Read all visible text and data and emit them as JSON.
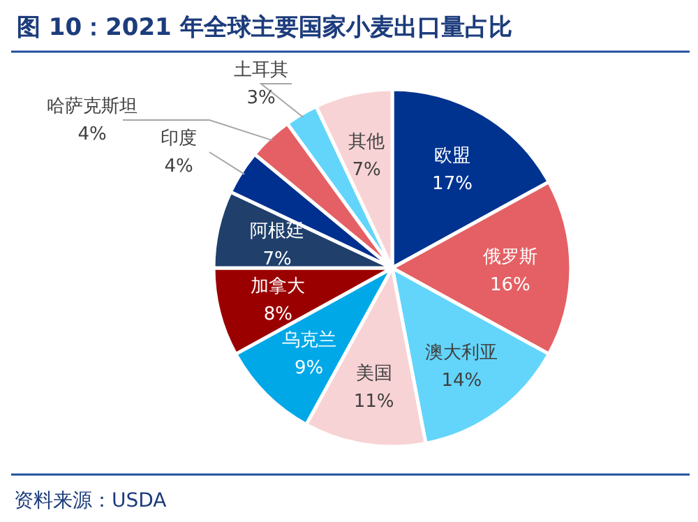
{
  "chart_data": {
    "type": "pie",
    "title": "图 10：2021 年全球主要国家小麦出口量占比",
    "categories": [
      "欧盟",
      "俄罗斯",
      "澳大利亚",
      "美国",
      "乌克兰",
      "加拿大",
      "阿根廷",
      "印度",
      "哈萨克斯坦",
      "土耳其",
      "其他"
    ],
    "values": [
      17,
      16,
      14,
      11,
      9,
      8,
      7,
      4,
      4,
      3,
      7
    ],
    "colors": [
      "#003390",
      "#e46064",
      "#63d5fb",
      "#f8d3d5",
      "#00a8e8",
      "#9b0000",
      "#203f6b",
      "#00308f",
      "#e46064",
      "#63d5fb",
      "#f8d3d5"
    ],
    "value_labels": [
      "17%",
      "16%",
      "14%",
      "11%",
      "9%",
      "8%",
      "7%",
      "4%",
      "4%",
      "3%",
      "7%"
    ],
    "annotations": [
      "资料来源：USDA"
    ]
  }
}
